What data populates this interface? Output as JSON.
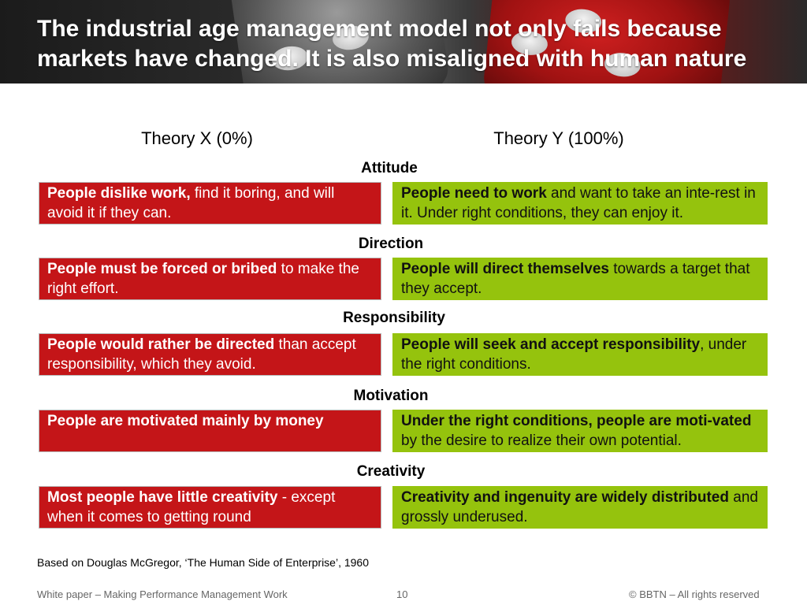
{
  "slide": {
    "title": "The industrial age management model not only fails because markets have changed. It is also misaligned with human nature"
  },
  "columns": {
    "x_label": "Theory X (0%)",
    "y_label": "Theory Y (100%)"
  },
  "rows": [
    {
      "category": "Attitude",
      "x_bold": "People dislike work,",
      "x_rest": " find it boring, and will avoid it if they can.",
      "y_bold": "People need to work",
      "y_rest": " and want to take an inte-rest in it. Under right conditions, they can enjoy it."
    },
    {
      "category": "Direction",
      "x_bold": "People must be forced or bribed",
      "x_rest": " to make the right effort.",
      "y_bold": "People will direct themselves",
      "y_rest": " towards a target that they accept."
    },
    {
      "category": "Responsibility",
      "x_bold": "People would rather be directed",
      "x_rest": " than accept responsibility, which they avoid.",
      "y_bold": "People will seek and accept responsibility",
      "y_rest": ", under the right conditions."
    },
    {
      "category": "Motivation",
      "x_bold": "People are motivated mainly by money",
      "x_rest": "",
      "y_bold": "Under the right conditions, people are moti-vated",
      "y_rest": " by the desire to realize their own potential."
    },
    {
      "category": "Creativity",
      "x_bold": "Most people have little creativity",
      "x_rest": " - except when it comes to getting round",
      "y_bold": "Creativity and ingenuity are widely distributed",
      "y_rest": " and grossly underused."
    }
  ],
  "credit": "Based on Douglas McGregor, ‘The Human Side of Enterprise’, 1960",
  "footer": {
    "left": "White paper – Making Performance Management Work",
    "page": "10",
    "copyright": "© BBTN – All rights reserved"
  },
  "colors": {
    "theory_x": "#c41518",
    "theory_y": "#95c30d"
  }
}
